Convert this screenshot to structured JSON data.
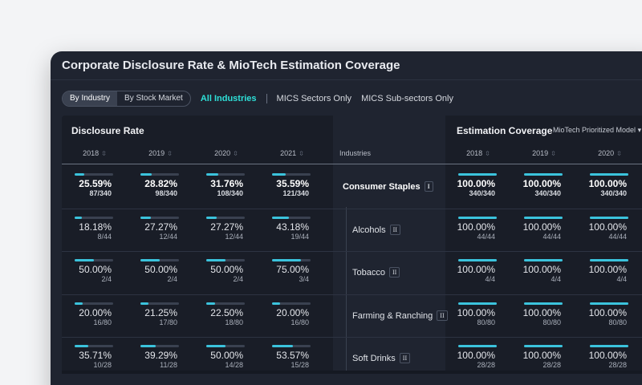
{
  "window": {
    "title": "Corporate Disclosure Rate & MioTech Estimation Coverage"
  },
  "toggle": {
    "by_industry": "By Industry",
    "by_stock_market": "By Stock Market"
  },
  "filters": {
    "all": "All Industries",
    "sectors": "MICS Sectors Only",
    "subsectors": "MICS Sub-sectors Only"
  },
  "disclosure": {
    "title": "Disclosure Rate",
    "years": [
      "2018",
      "2019",
      "2020",
      "2021"
    ]
  },
  "industries_header": "Industries",
  "coverage": {
    "title": "Estimation Coverage",
    "model": "MioTech Prioritized Model",
    "years": [
      "2018",
      "2019",
      "2020"
    ]
  },
  "icons": {
    "sort": "sort-icon",
    "dropdown": "chevron-down-icon"
  },
  "colors": {
    "accent": "#2ee0d8",
    "bar": "#3bc3dc",
    "bar_track": "#3a4150"
  },
  "rows": [
    {
      "name": "Consumer Staples",
      "level": "I",
      "bold": true,
      "disclosure": [
        {
          "pct": "25.59%",
          "count": "87/340",
          "fill": 0.2559
        },
        {
          "pct": "28.82%",
          "count": "98/340",
          "fill": 0.2882
        },
        {
          "pct": "31.76%",
          "count": "108/340",
          "fill": 0.3176
        },
        {
          "pct": "35.59%",
          "count": "121/340",
          "fill": 0.3559
        }
      ],
      "coverage": [
        {
          "pct": "100.00%",
          "count": "340/340",
          "fill": 1
        },
        {
          "pct": "100.00%",
          "count": "340/340",
          "fill": 1
        },
        {
          "pct": "100.00%",
          "count": "340/340",
          "fill": 1
        }
      ]
    },
    {
      "name": "Alcohols",
      "level": "II",
      "bold": false,
      "disclosure": [
        {
          "pct": "18.18%",
          "count": "8/44",
          "fill": 0.1818
        },
        {
          "pct": "27.27%",
          "count": "12/44",
          "fill": 0.2727
        },
        {
          "pct": "27.27%",
          "count": "12/44",
          "fill": 0.2727
        },
        {
          "pct": "43.18%",
          "count": "19/44",
          "fill": 0.4318
        }
      ],
      "coverage": [
        {
          "pct": "100.00%",
          "count": "44/44",
          "fill": 1
        },
        {
          "pct": "100.00%",
          "count": "44/44",
          "fill": 1
        },
        {
          "pct": "100.00%",
          "count": "44/44",
          "fill": 1
        }
      ]
    },
    {
      "name": "Tobacco",
      "level": "II",
      "bold": false,
      "disclosure": [
        {
          "pct": "50.00%",
          "count": "2/4",
          "fill": 0.5
        },
        {
          "pct": "50.00%",
          "count": "2/4",
          "fill": 0.5
        },
        {
          "pct": "50.00%",
          "count": "2/4",
          "fill": 0.5
        },
        {
          "pct": "75.00%",
          "count": "3/4",
          "fill": 0.75
        }
      ],
      "coverage": [
        {
          "pct": "100.00%",
          "count": "4/4",
          "fill": 1
        },
        {
          "pct": "100.00%",
          "count": "4/4",
          "fill": 1
        },
        {
          "pct": "100.00%",
          "count": "4/4",
          "fill": 1
        }
      ]
    },
    {
      "name": "Farming & Ranching",
      "level": "II",
      "bold": false,
      "disclosure": [
        {
          "pct": "20.00%",
          "count": "16/80",
          "fill": 0.2
        },
        {
          "pct": "21.25%",
          "count": "17/80",
          "fill": 0.2125
        },
        {
          "pct": "22.50%",
          "count": "18/80",
          "fill": 0.225
        },
        {
          "pct": "20.00%",
          "count": "16/80",
          "fill": 0.2
        }
      ],
      "coverage": [
        {
          "pct": "100.00%",
          "count": "80/80",
          "fill": 1
        },
        {
          "pct": "100.00%",
          "count": "80/80",
          "fill": 1
        },
        {
          "pct": "100.00%",
          "count": "80/80",
          "fill": 1
        }
      ]
    },
    {
      "name": "Soft Drinks",
      "level": "II",
      "bold": false,
      "disclosure": [
        {
          "pct": "35.71%",
          "count": "10/28",
          "fill": 0.3571
        },
        {
          "pct": "39.29%",
          "count": "11/28",
          "fill": 0.3929
        },
        {
          "pct": "50.00%",
          "count": "14/28",
          "fill": 0.5
        },
        {
          "pct": "53.57%",
          "count": "15/28",
          "fill": 0.5357
        }
      ],
      "coverage": [
        {
          "pct": "100.00%",
          "count": "28/28",
          "fill": 1
        },
        {
          "pct": "100.00%",
          "count": "28/28",
          "fill": 1
        },
        {
          "pct": "100.00%",
          "count": "28/28",
          "fill": 1
        }
      ]
    }
  ]
}
